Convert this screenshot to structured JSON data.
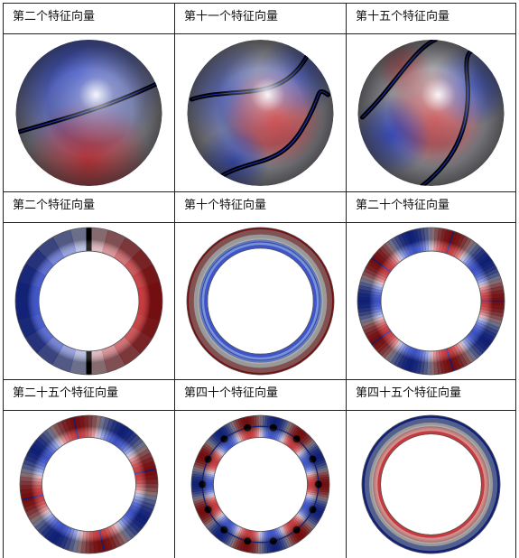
{
  "cells": [
    {
      "label": "第二个特征向量",
      "shape": "sphere",
      "variant": 0
    },
    {
      "label": "第十一个特征向量",
      "shape": "sphere",
      "variant": 1
    },
    {
      "label": "第十五个特征向量",
      "shape": "sphere",
      "variant": 2
    },
    {
      "label": "第二个特征向量",
      "shape": "torus",
      "variant": 0
    },
    {
      "label": "第十个特征向量",
      "shape": "torus",
      "variant": 1
    },
    {
      "label": "第二十个特征向量",
      "shape": "torus",
      "variant": 2
    },
    {
      "label": "第二十五个特征向量",
      "shape": "torus",
      "variant": 3
    },
    {
      "label": "第四十个特征向量",
      "shape": "torus",
      "variant": 4
    },
    {
      "label": "第四十五个特征向量",
      "shape": "torus",
      "variant": 5
    }
  ],
  "colors": {
    "red": "#c0161a",
    "blue": "#1c36c4",
    "white": "#ffffff",
    "grey": "#8c8c92",
    "line": "#000000",
    "lineBlue": "#1b2fb8"
  }
}
